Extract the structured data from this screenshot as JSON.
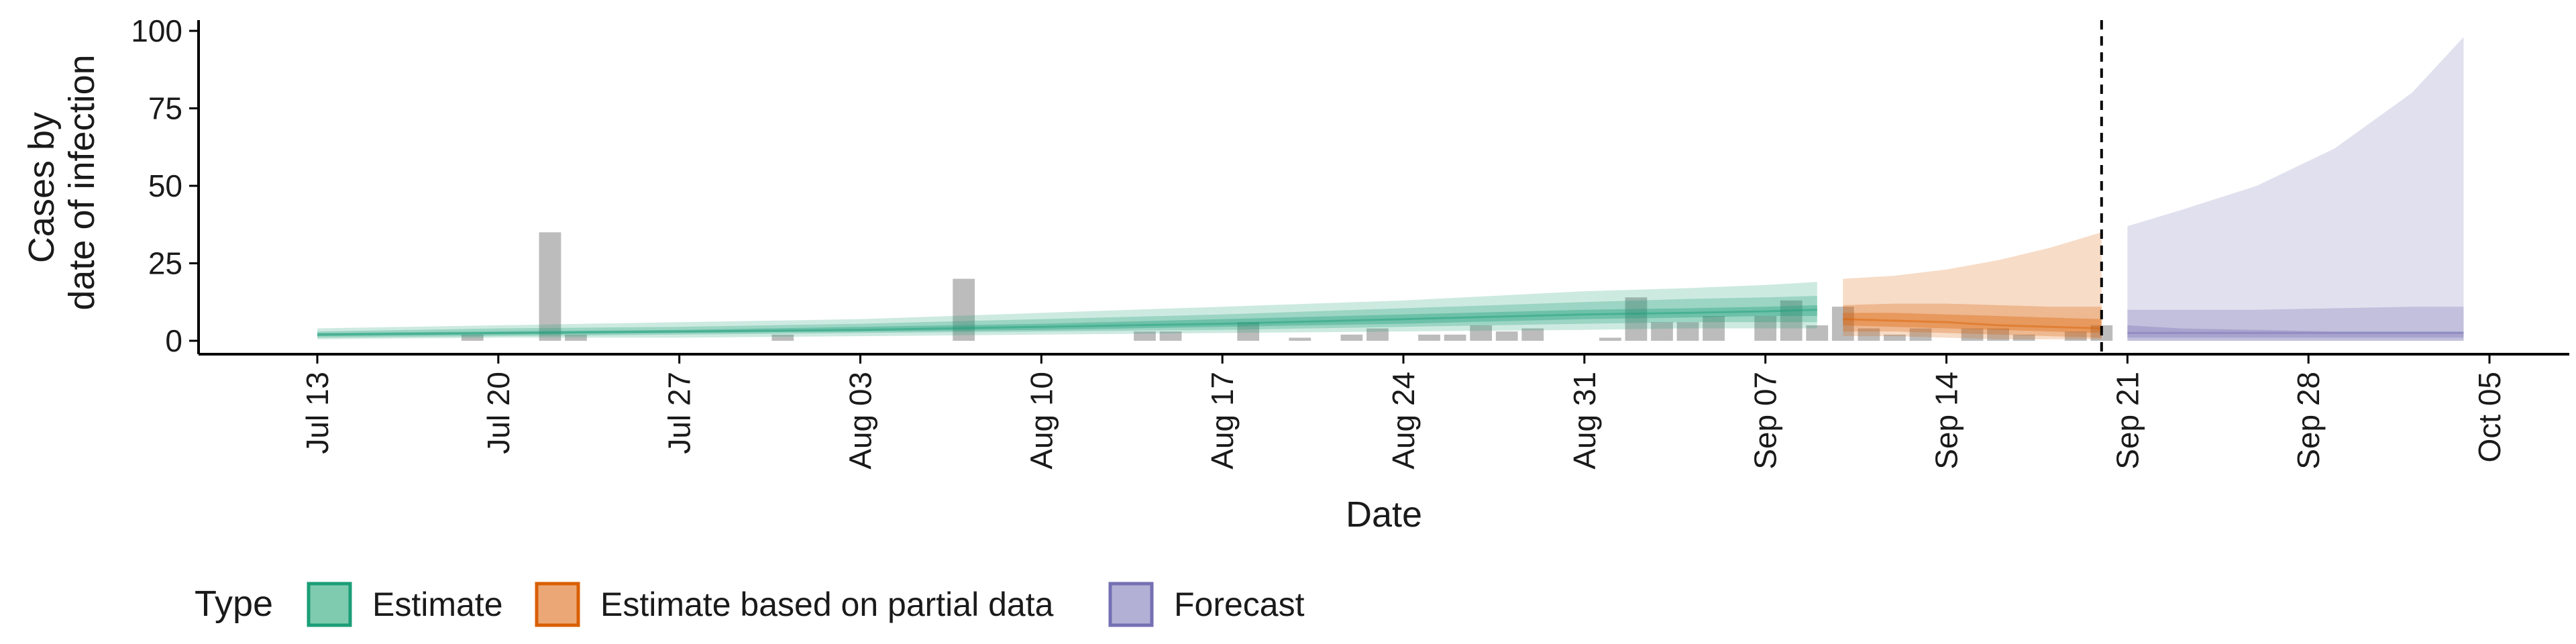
{
  "chart_data": {
    "type": "area",
    "xlabel": "Date",
    "ylabel_lines": [
      "Cases by",
      "date of infection"
    ],
    "ylim": [
      0,
      100
    ],
    "yticks": [
      0,
      25,
      50,
      75,
      100
    ],
    "x_range": [
      "2020-07-06",
      "2020-10-09"
    ],
    "xticks": [
      {
        "date": "2020-07-13",
        "label": "Jul 13"
      },
      {
        "date": "2020-07-20",
        "label": "Jul 20"
      },
      {
        "date": "2020-07-27",
        "label": "Jul 27"
      },
      {
        "date": "2020-08-03",
        "label": "Aug 03"
      },
      {
        "date": "2020-08-10",
        "label": "Aug 10"
      },
      {
        "date": "2020-08-17",
        "label": "Aug 17"
      },
      {
        "date": "2020-08-24",
        "label": "Aug 24"
      },
      {
        "date": "2020-08-31",
        "label": "Aug 31"
      },
      {
        "date": "2020-09-07",
        "label": "Sep 07"
      },
      {
        "date": "2020-09-14",
        "label": "Sep 14"
      },
      {
        "date": "2020-09-21",
        "label": "Sep 21"
      },
      {
        "date": "2020-09-28",
        "label": "Sep 28"
      },
      {
        "date": "2020-10-05",
        "label": "Oct 05"
      }
    ],
    "vline_date": "2020-09-20",
    "legend": {
      "title": "Type",
      "position": "bottom",
      "entries": [
        {
          "label": "Estimate",
          "fill": "#7ecbb0",
          "stroke": "#1b9e77"
        },
        {
          "label": "Estimate based on partial data",
          "fill": "#eba876",
          "stroke": "#d95f02"
        },
        {
          "label": "Forecast",
          "fill": "#b3b0d6",
          "stroke": "#7570b3"
        }
      ]
    },
    "observed_cases": {
      "color": "#a6a6a6",
      "dates": [
        "2020-07-19",
        "2020-07-22",
        "2020-07-23",
        "2020-07-31",
        "2020-08-07",
        "2020-08-14",
        "2020-08-15",
        "2020-08-18",
        "2020-08-20",
        "2020-08-22",
        "2020-08-23",
        "2020-08-25",
        "2020-08-26",
        "2020-08-27",
        "2020-08-28",
        "2020-08-29",
        "2020-09-01",
        "2020-09-02",
        "2020-09-03",
        "2020-09-04",
        "2020-09-05",
        "2020-09-07",
        "2020-09-08",
        "2020-09-09",
        "2020-09-10",
        "2020-09-11",
        "2020-09-12",
        "2020-09-13",
        "2020-09-15",
        "2020-09-16",
        "2020-09-17",
        "2020-09-19",
        "2020-09-20"
      ],
      "values": [
        2,
        35,
        2,
        2,
        20,
        3,
        3,
        6,
        1,
        2,
        4,
        2,
        2,
        5,
        3,
        4,
        1,
        14,
        6,
        6,
        8,
        8,
        13,
        5,
        11,
        4,
        2,
        4,
        4,
        4,
        2,
        3,
        5
      ]
    },
    "series": [
      {
        "name": "Estimate",
        "color": "#1b9e77",
        "dates": [
          "2020-07-13",
          "2020-07-20",
          "2020-07-27",
          "2020-08-03",
          "2020-08-10",
          "2020-08-17",
          "2020-08-24",
          "2020-08-31",
          "2020-09-04",
          "2020-09-07",
          "2020-09-09"
        ],
        "median": [
          2,
          2.5,
          3,
          3.5,
          4.5,
          5.5,
          7,
          8.5,
          9,
          9.5,
          10
        ],
        "inner_lower": [
          1.5,
          2,
          2.5,
          3,
          3.5,
          4.5,
          5.5,
          7,
          7.5,
          8,
          8
        ],
        "inner_upper": [
          2.5,
          3,
          3.5,
          4.5,
          5.5,
          7,
          8.5,
          10,
          10.5,
          11,
          11.5
        ],
        "mid_lower": [
          1,
          1.5,
          2,
          2.5,
          3,
          3.5,
          4.5,
          5.5,
          6,
          6,
          6
        ],
        "mid_upper": [
          3,
          4,
          4.5,
          5.5,
          7,
          8.5,
          10.5,
          12.5,
          13.5,
          14,
          14.5
        ],
        "outer_lower": [
          0.5,
          1,
          1,
          1.5,
          2,
          2.5,
          3,
          3.5,
          4,
          4,
          4
        ],
        "outer_upper": [
          4,
          5,
          6,
          7,
          9,
          11,
          13,
          16,
          17,
          18,
          19
        ]
      },
      {
        "name": "Estimate based on partial data",
        "color": "#d95f02",
        "dates": [
          "2020-09-10",
          "2020-09-12",
          "2020-09-14",
          "2020-09-16",
          "2020-09-18",
          "2020-09-20"
        ],
        "median": [
          7,
          6.5,
          6,
          5,
          4.5,
          4
        ],
        "inner_lower": [
          5,
          4.5,
          4,
          3.5,
          3,
          2.5
        ],
        "inner_upper": [
          9,
          9,
          8.5,
          8,
          7.5,
          7
        ],
        "mid_lower": [
          3,
          3,
          2.5,
          2,
          1.5,
          1
        ],
        "mid_upper": [
          11.5,
          12,
          12,
          11.5,
          11,
          11
        ],
        "outer_lower": [
          1.5,
          1.5,
          1,
          0.5,
          0.5,
          0.5
        ],
        "outer_upper": [
          20,
          21,
          23,
          26,
          30,
          35
        ]
      },
      {
        "name": "Forecast",
        "color": "#7570b3",
        "dates": [
          "2020-09-21",
          "2020-09-23",
          "2020-09-26",
          "2020-09-29",
          "2020-10-02",
          "2020-10-04"
        ],
        "median": [
          2.5,
          2.5,
          2.5,
          2.5,
          2.5,
          2.5
        ],
        "inner_lower": [
          1,
          1,
          1,
          1,
          1,
          1
        ],
        "inner_upper": [
          5,
          4,
          3.5,
          3,
          3,
          3
        ],
        "mid_lower": [
          0,
          0,
          0,
          0,
          0,
          0
        ],
        "mid_upper": [
          10,
          10,
          10,
          10.5,
          11,
          11
        ],
        "outer_lower": [
          0,
          0,
          0,
          0,
          0,
          0
        ],
        "outer_upper": [
          37,
          42,
          50,
          62,
          80,
          98
        ]
      }
    ]
  }
}
